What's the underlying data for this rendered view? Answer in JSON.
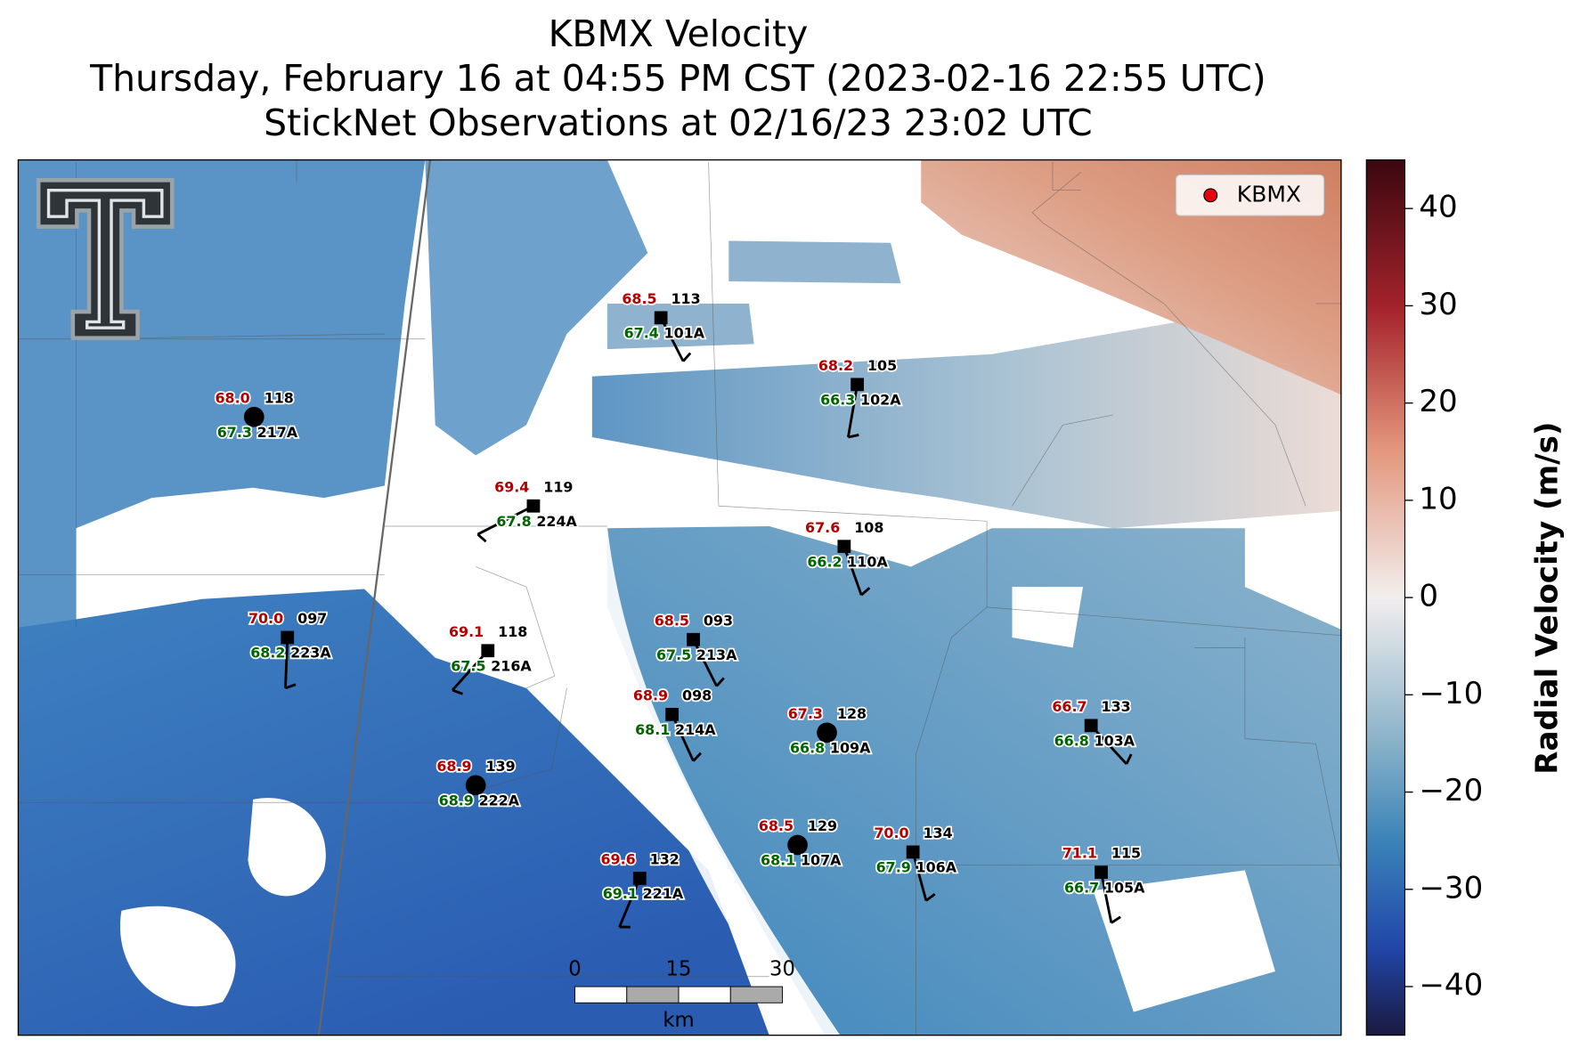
{
  "header": {
    "title": [
      "KBMX Velocity",
      "Thursday, February 16 at 04:55 PM CST (2023-02-16 22:55 UTC)",
      "StickNet Observations at 02/16/23 23:02 UTC"
    ]
  },
  "legend": {
    "label": "KBMX",
    "color": "#e8000b"
  },
  "stations": [
    {
      "t": "68.5",
      "obs": "113",
      "td": "67.4",
      "id": "101A",
      "marker": "square"
    },
    {
      "t": "68.2",
      "obs": "105",
      "td": "66.3",
      "id": "102A",
      "marker": "square"
    },
    {
      "t": "68.0",
      "obs": "118",
      "td": "67.3",
      "id": "217A",
      "marker": "circle"
    },
    {
      "t": "69.4",
      "obs": "119",
      "td": "67.8",
      "id": "224A",
      "marker": "square"
    },
    {
      "t": "67.6",
      "obs": "108",
      "td": "66.2",
      "id": "110A",
      "marker": "square"
    },
    {
      "t": "70.0",
      "obs": "097",
      "td": "68.2",
      "id": "223A",
      "marker": "square"
    },
    {
      "t": "69.1",
      "obs": "118",
      "td": "67.5",
      "id": "216A",
      "marker": "square"
    },
    {
      "t": "68.5",
      "obs": "093",
      "td": "67.5",
      "id": "213A",
      "marker": "square"
    },
    {
      "t": "68.9",
      "obs": "098",
      "td": "68.1",
      "id": "214A",
      "marker": "square"
    },
    {
      "t": "67.3",
      "obs": "128",
      "td": "66.8",
      "id": "109A",
      "marker": "circle"
    },
    {
      "t": "66.7",
      "obs": "133",
      "td": "66.8",
      "id": "103A",
      "marker": "square"
    },
    {
      "t": "68.9",
      "obs": "139",
      "td": "68.9",
      "id": "222A",
      "marker": "circle"
    },
    {
      "t": "68.5",
      "obs": "129",
      "td": "68.1",
      "id": "107A",
      "marker": "circle"
    },
    {
      "t": "70.0",
      "obs": "134",
      "td": "67.9",
      "id": "106A",
      "marker": "square"
    },
    {
      "t": "71.1",
      "obs": "115",
      "td": "66.7",
      "id": "105A",
      "marker": "square"
    },
    {
      "t": "69.6",
      "obs": "132",
      "td": "69.1",
      "id": "221A",
      "marker": "square"
    }
  ],
  "scale_bar": {
    "ticks": [
      0,
      15,
      30
    ],
    "unit": "km"
  },
  "colorbar": {
    "label": "Radial Velocity (m/s)",
    "lim": [
      -45,
      45
    ],
    "ticks": [
      {
        "value": 40,
        "label": "40"
      },
      {
        "value": 30,
        "label": "30"
      },
      {
        "value": 20,
        "label": "20"
      },
      {
        "value": 10,
        "label": "10"
      },
      {
        "value": 0,
        "label": "0"
      },
      {
        "value": -10,
        "label": "−10"
      },
      {
        "value": -20,
        "label": "−20"
      },
      {
        "value": -30,
        "label": "−30"
      },
      {
        "value": -40,
        "label": "−40"
      }
    ]
  }
}
